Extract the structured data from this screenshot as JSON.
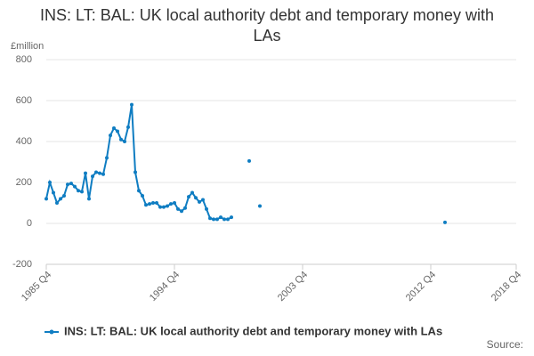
{
  "chart_data": {
    "type": "line",
    "title": "INS: LT: BAL: UK local authority debt and temporary money with LAs",
    "y_label": "£million",
    "source": "Source:",
    "categories": [
      "1985 Q4",
      null,
      null,
      null,
      null,
      null,
      null,
      null,
      null,
      null,
      null,
      null,
      null,
      null,
      null,
      null,
      null,
      null,
      null,
      null,
      null,
      null,
      null,
      null,
      null,
      null,
      null,
      null,
      null,
      null,
      null,
      null,
      null,
      null,
      null,
      null,
      "1994 Q4",
      null,
      null,
      null,
      null,
      null,
      null,
      null,
      null,
      null,
      null,
      null,
      null,
      null,
      null,
      null,
      null,
      null,
      null,
      null,
      null,
      null,
      null,
      null,
      null,
      null,
      null,
      null,
      null,
      null,
      null,
      null,
      null,
      null,
      null,
      null,
      "2003 Q4",
      null,
      null,
      null,
      null,
      null,
      null,
      null,
      null,
      null,
      null,
      null,
      null,
      null,
      null,
      null,
      null,
      null,
      null,
      null,
      null,
      null,
      null,
      null,
      null,
      null,
      null,
      null,
      null,
      null,
      null,
      null,
      null,
      null,
      null,
      null,
      "2012 Q4",
      null,
      null,
      null,
      null,
      null,
      null,
      null,
      null,
      null,
      null,
      null,
      null,
      null,
      null,
      null,
      null,
      null,
      null,
      null,
      null,
      null,
      null,
      null,
      "2018 Q4"
    ],
    "series": [
      {
        "name": "INS: LT: BAL: UK local authority debt and temporary money with LAs",
        "color": "#0f7dc2",
        "values": [
          120,
          200,
          150,
          100,
          120,
          135,
          190,
          195,
          180,
          160,
          155,
          245,
          120,
          230,
          250,
          245,
          240,
          320,
          430,
          465,
          450,
          410,
          400,
          470,
          580,
          250,
          160,
          135,
          90,
          95,
          100,
          100,
          80,
          80,
          85,
          95,
          100,
          70,
          60,
          75,
          130,
          150,
          125,
          105,
          115,
          70,
          25,
          20,
          20,
          30,
          20,
          20,
          30,
          null,
          null,
          null,
          null,
          305,
          null,
          null,
          85,
          null,
          null,
          null,
          null,
          null,
          null,
          null,
          null,
          null,
          null,
          null,
          null,
          null,
          null,
          null,
          null,
          null,
          null,
          null,
          null,
          null,
          null,
          null,
          null,
          null,
          null,
          null,
          null,
          null,
          null,
          null,
          null,
          null,
          null,
          null,
          null,
          null,
          null,
          null,
          null,
          null,
          null,
          null,
          null,
          null,
          null,
          null,
          null,
          null,
          null,
          null,
          5,
          null,
          null,
          null,
          null,
          null,
          null,
          null,
          null,
          null,
          null,
          null,
          null,
          null,
          null,
          null,
          null,
          null,
          null,
          null,
          null
        ]
      }
    ],
    "ylim": [
      -200,
      800
    ],
    "yticks": [
      -200,
      0,
      200,
      400,
      600,
      800
    ],
    "grid": true
  }
}
